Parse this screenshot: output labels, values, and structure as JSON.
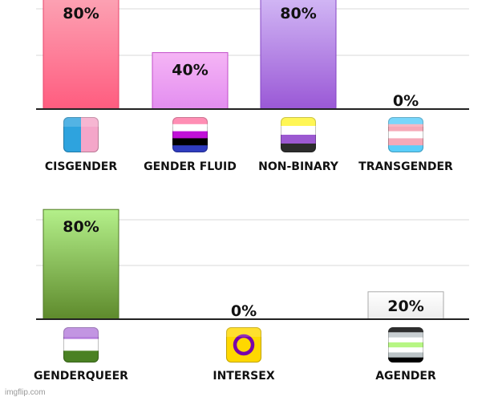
{
  "chart_data": [
    {
      "type": "bar",
      "ylim": [
        0,
        100
      ],
      "grid": true,
      "categories": [
        "CISGENDER",
        "GENDER FLUID",
        "NON-BINARY",
        "TRANSGENDER"
      ],
      "values": [
        80,
        40,
        80,
        0
      ],
      "labels": [
        "80%",
        "40%",
        "80%",
        "0%"
      ],
      "bar_colors": [
        {
          "top": "#fca3b4",
          "bottom": "#ff5c7f",
          "stroke": "#e8436a"
        },
        {
          "top": "#f5b5f5",
          "bottom": "#e38df0",
          "stroke": "#c24ec9"
        },
        {
          "top": "#d2b8f5",
          "bottom": "#9a58d6",
          "stroke": "#8545c4"
        },
        {
          "top": "#ffffff",
          "bottom": "#ffffff",
          "stroke": "#cccccc"
        }
      ],
      "icons": [
        "cisgender-flag-icon",
        "genderfluid-flag-icon",
        "nonbinary-flag-icon",
        "transgender-flag-icon"
      ]
    },
    {
      "type": "bar",
      "ylim": [
        0,
        100
      ],
      "grid": true,
      "categories": [
        "GENDERQUEER",
        "INTERSEX",
        "AGENDER"
      ],
      "values": [
        80,
        0,
        20
      ],
      "labels": [
        "80%",
        "0%",
        "20%"
      ],
      "bar_colors": [
        {
          "top": "#b4f08a",
          "bottom": "#5e8a2c",
          "stroke": "#4f7a24"
        },
        {
          "top": "#ffffff",
          "bottom": "#ffffff",
          "stroke": "#cccccc"
        },
        {
          "top": "#ffffff",
          "bottom": "#ececec",
          "stroke": "#aaaaaa"
        }
      ],
      "icons": [
        "genderqueer-flag-icon",
        "intersex-flag-icon",
        "agender-flag-icon"
      ]
    }
  ],
  "watermark": "imgflip.com"
}
